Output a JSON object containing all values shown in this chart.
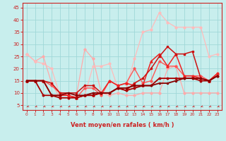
{
  "xlabel": "Vent moyen/en rafales ( km/h )",
  "xlim": [
    -0.5,
    23.5
  ],
  "ylim": [
    3,
    47
  ],
  "yticks": [
    5,
    10,
    15,
    20,
    25,
    30,
    35,
    40,
    45
  ],
  "xticks": [
    0,
    1,
    2,
    3,
    4,
    5,
    6,
    7,
    8,
    9,
    10,
    11,
    12,
    13,
    14,
    15,
    16,
    17,
    18,
    19,
    20,
    21,
    22,
    23
  ],
  "bg_color": "#c8eeed",
  "grid_color": "#a0d8d8",
  "lines": [
    {
      "y": [
        26,
        23,
        25,
        14,
        8,
        8,
        9,
        28,
        24,
        10,
        9,
        10,
        9,
        9,
        10,
        10,
        10,
        20,
        21,
        10,
        10,
        10,
        10,
        10
      ],
      "color": "#ffaaaa",
      "lw": 0.9,
      "marker": "D",
      "ms": 1.8
    },
    {
      "y": [
        26,
        23,
        22,
        20,
        9,
        9,
        8,
        9,
        21,
        21,
        22,
        12,
        12,
        24,
        35,
        36,
        43,
        39,
        37,
        37,
        37,
        37,
        25,
        26
      ],
      "color": "#ffbbbb",
      "lw": 0.9,
      "marker": "o",
      "ms": 2.0
    },
    {
      "y": [
        15,
        15,
        15,
        13,
        10,
        9,
        8,
        12,
        12,
        9,
        15,
        13,
        14,
        20,
        14,
        15,
        23,
        21,
        21,
        17,
        17,
        17,
        15,
        18
      ],
      "color": "#ff5555",
      "lw": 1.0,
      "marker": "o",
      "ms": 2.0
    },
    {
      "y": [
        15,
        15,
        15,
        9,
        9,
        9,
        8,
        9,
        9,
        10,
        15,
        13,
        14,
        13,
        13,
        23,
        26,
        21,
        26,
        17,
        17,
        16,
        15,
        18
      ],
      "color": "#ee2222",
      "lw": 1.1,
      "marker": "^",
      "ms": 2.2
    },
    {
      "y": [
        15,
        15,
        15,
        14,
        10,
        10,
        10,
        13,
        13,
        10,
        10,
        12,
        11,
        14,
        16,
        20,
        25,
        29,
        26,
        26,
        27,
        16,
        15,
        17
      ],
      "color": "#cc1111",
      "lw": 1.1,
      "marker": "s",
      "ms": 2.0
    },
    {
      "y": [
        15,
        15,
        9,
        9,
        8,
        8,
        8,
        9,
        9,
        10,
        10,
        12,
        11,
        12,
        13,
        13,
        16,
        16,
        16,
        16,
        16,
        15,
        15,
        17
      ],
      "color": "#aa0000",
      "lw": 1.3,
      "marker": "o",
      "ms": 1.8
    },
    {
      "y": [
        15,
        15,
        15,
        9,
        9,
        10,
        9,
        9,
        10,
        10,
        10,
        12,
        12,
        13,
        13,
        13,
        14,
        14,
        15,
        16,
        16,
        16,
        15,
        17
      ],
      "color": "#880000",
      "lw": 1.3,
      "marker": "o",
      "ms": 1.5
    }
  ],
  "axis_color": "#cc2222",
  "tick_color": "#cc2222",
  "label_color": "#cc2222"
}
